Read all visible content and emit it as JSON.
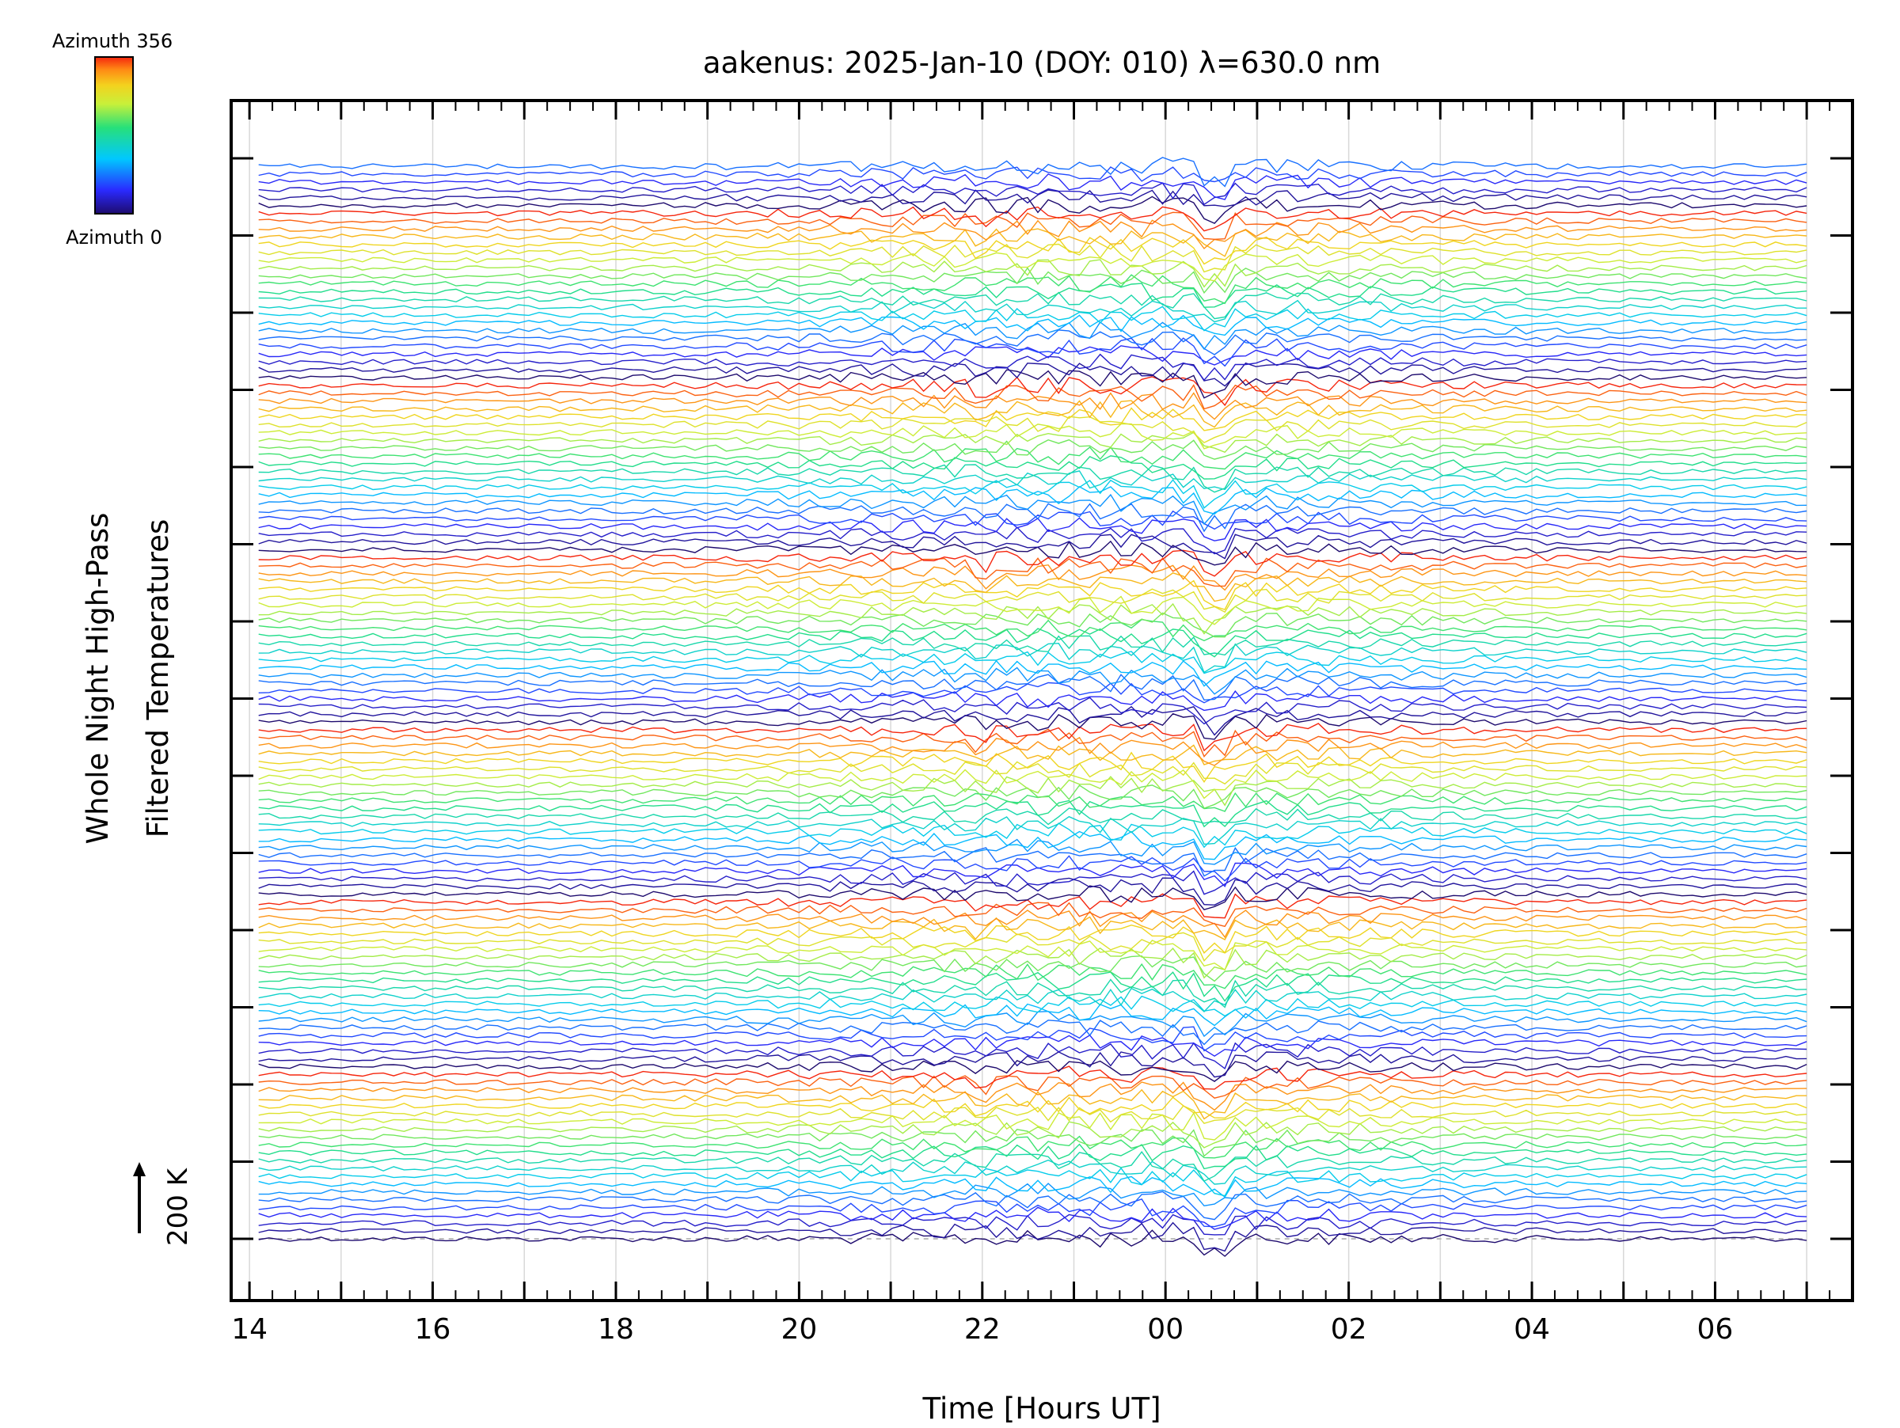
{
  "chart_data": {
    "type": "line",
    "title": "aakenus: 2025-Jan-10 (DOY: 010) λ=630.0 nm",
    "xlabel": "Time [Hours UT]",
    "ylabel_line1": "Whole Night High-Pass",
    "ylabel_line2": "Filtered Temperatures",
    "x_tick_labels": [
      "14",
      "16",
      "18",
      "20",
      "22",
      "00",
      "02",
      "04",
      "06"
    ],
    "x_tick_hours": [
      14,
      16,
      18,
      20,
      22,
      24,
      26,
      28,
      30
    ],
    "xlim_hours": [
      13.8,
      31.5
    ],
    "data_xlim_hours": [
      14.1,
      31.0
    ],
    "scale_label": "200 K",
    "colorbar": {
      "top_label": "Azimuth 356",
      "bottom_label": "Azimuth 0",
      "min": 0,
      "max": 356,
      "colormap": "rainbow"
    },
    "baseline_dashed": true,
    "grid": "vertical-hourly",
    "stacked_traces_note_count": 13,
    "colors": {
      "axis": "#000000",
      "grid": "#d8d8d8",
      "baseline": "#bdbdbd"
    }
  }
}
